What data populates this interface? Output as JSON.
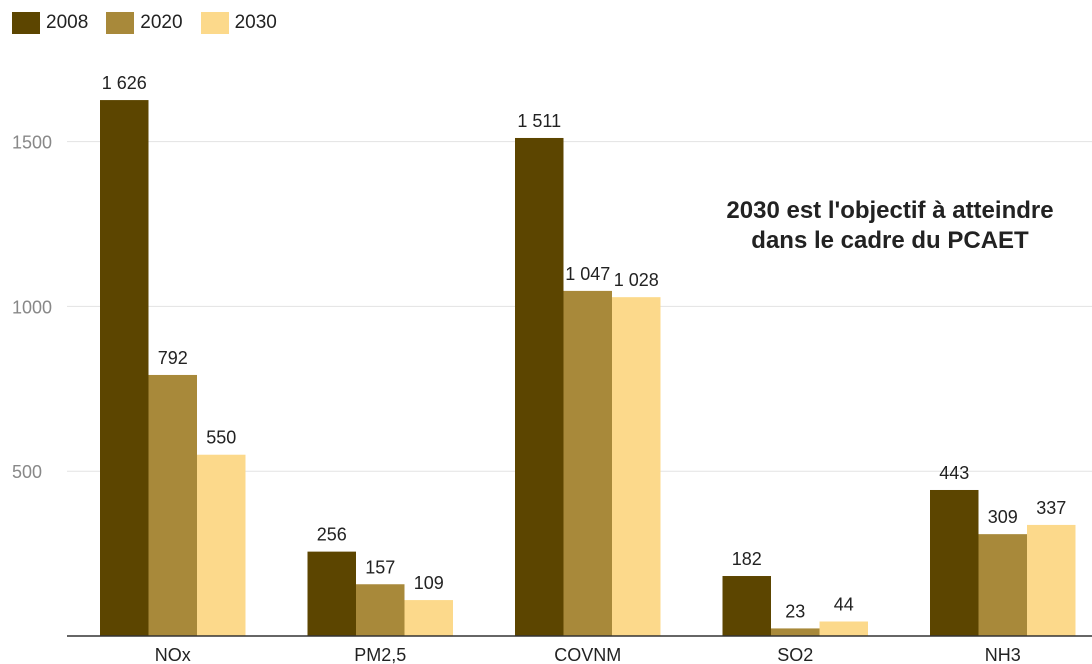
{
  "legend": [
    {
      "label": "2008",
      "color": "#5c4500"
    },
    {
      "label": "2020",
      "color": "#a8893a"
    },
    {
      "label": "2030",
      "color": "#fcd98b"
    }
  ],
  "annotation": {
    "line1": "2030 est l'objectif à atteindre",
    "line2": "dans le cadre du PCAET"
  },
  "chart_data": {
    "type": "bar",
    "categories": [
      "NOx",
      "PM2,5",
      "COVNM",
      "SO2",
      "NH3"
    ],
    "series": [
      {
        "name": "2008",
        "color": "#5c4500",
        "values": [
          1626,
          256,
          1511,
          182,
          443
        ],
        "labels": [
          "1 626",
          "256",
          "1 511",
          "182",
          "443"
        ]
      },
      {
        "name": "2020",
        "color": "#a8893a",
        "values": [
          792,
          157,
          1047,
          23,
          309
        ],
        "labels": [
          "792",
          "157",
          "1 047",
          "23",
          "309"
        ]
      },
      {
        "name": "2030",
        "color": "#fcd98b",
        "values": [
          550,
          109,
          1028,
          44,
          337
        ],
        "labels": [
          "550",
          "109",
          "1 028",
          "44",
          "337"
        ]
      }
    ],
    "yticks": [
      500,
      1000,
      1500
    ],
    "ylim": [
      0,
      1650
    ],
    "grid": true,
    "legend_position": "top-left"
  }
}
